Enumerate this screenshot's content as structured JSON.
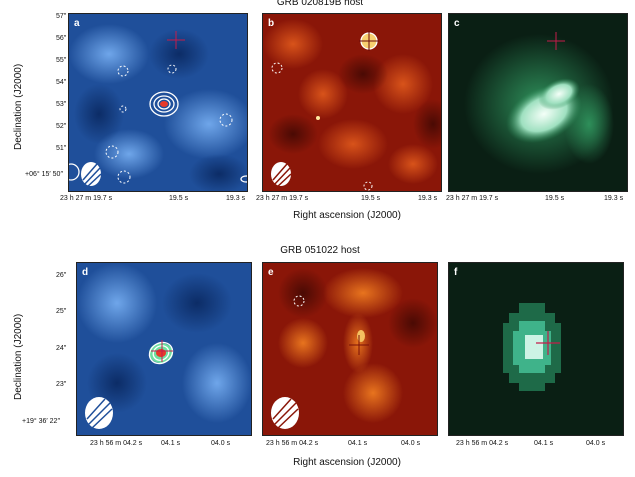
{
  "figure": {
    "row1": {
      "title": "GRB 020819B host",
      "panel_labels": [
        "a",
        "b",
        "c"
      ],
      "ylabel": "Declination (J2000)",
      "xlabel": "Right ascension (J2000)",
      "yticks": [
        "57″",
        "56″",
        "55″",
        "54″",
        "53″",
        "52″",
        "51″",
        "+06° 15′ 50″"
      ],
      "xticks": [
        "23 h 27 m 19.7 s",
        "19.5 s",
        "19.3 s"
      ]
    },
    "row2": {
      "title": "GRB 051022 host",
      "panel_labels": [
        "d",
        "e",
        "f"
      ],
      "ylabel": "Declination (J2000)",
      "xlabel": "Right ascension (J2000)",
      "yticks": [
        "26″",
        "25″",
        "24″",
        "23″",
        "+19° 36′ 22″"
      ],
      "xticks": [
        "23 h 56 m 04.2 s",
        "04.1 s",
        "04.0 s"
      ]
    }
  },
  "colors": {
    "blue_map": "#1f4f9a",
    "red_map": "#8a1608",
    "green_map": "#0a1f14",
    "cross": "#c41c4a"
  }
}
